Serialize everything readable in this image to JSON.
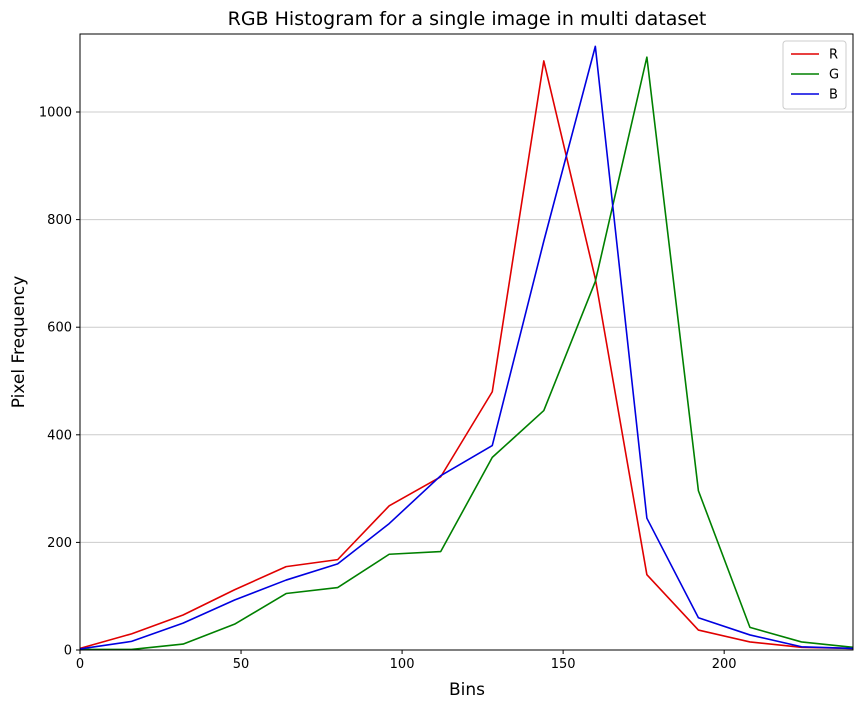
{
  "chart_data": {
    "type": "line",
    "title": "RGB Histogram for a single image in multi dataset",
    "xlabel": "Bins",
    "ylabel": "Pixel Frequency",
    "xlim": [
      0,
      240
    ],
    "ylim": [
      0,
      1145
    ],
    "xticks": [
      0,
      50,
      100,
      150,
      200
    ],
    "yticks": [
      0,
      200,
      400,
      600,
      800,
      1000
    ],
    "grid": "horizontal",
    "legend_position": "top-right",
    "x": [
      0,
      16,
      32,
      48,
      64,
      80,
      96,
      112,
      128,
      144,
      160,
      176,
      192,
      208,
      224,
      240
    ],
    "series": [
      {
        "name": "R",
        "color": "#e00000",
        "values": [
          3,
          30,
          65,
          112,
          155,
          168,
          268,
          322,
          480,
          1095,
          690,
          140,
          37,
          15,
          5,
          3
        ]
      },
      {
        "name": "G",
        "color": "#008000",
        "values": [
          1,
          1,
          11,
          48,
          105,
          116,
          178,
          183,
          358,
          445,
          685,
          1102,
          296,
          42,
          15,
          5
        ]
      },
      {
        "name": "B",
        "color": "#0000e0",
        "values": [
          2,
          16,
          50,
          93,
          130,
          160,
          235,
          324,
          380,
          760,
          1122,
          245,
          60,
          28,
          6,
          3
        ]
      }
    ]
  }
}
